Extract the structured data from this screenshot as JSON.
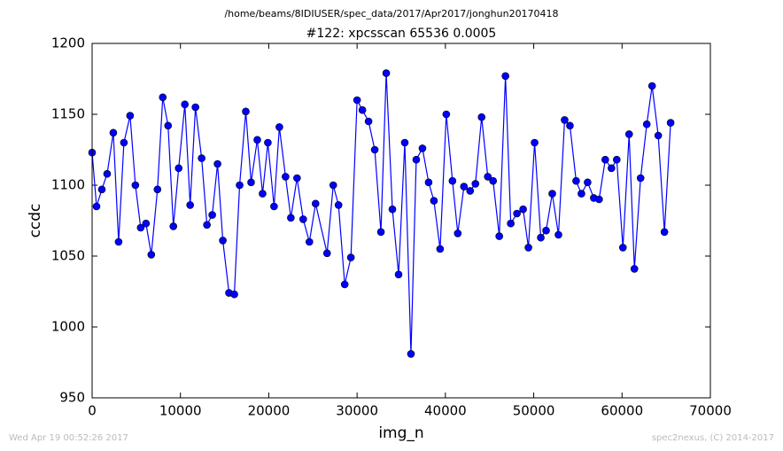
{
  "chart_data": {
    "type": "line",
    "suptitle": "/home/beams/8IDIUSER/spec_data/2017/Apr2017/jonghun20170418",
    "title": "#122: xpcsscan 65536 0.0005",
    "xlabel": "img_n",
    "ylabel": "ccdc",
    "footer_left": "Wed Apr 19 00:52:26 2017",
    "footer_right": "spec2nexus, (C) 2014-2017",
    "x": [
      0,
      500,
      1100,
      1700,
      2400,
      3000,
      3600,
      4300,
      4900,
      5500,
      6100,
      6700,
      7400,
      8000,
      8600,
      9200,
      9800,
      10500,
      11100,
      11700,
      12400,
      13000,
      13600,
      14200,
      14800,
      15500,
      16100,
      16700,
      17400,
      18000,
      18700,
      19300,
      19900,
      20600,
      21200,
      21900,
      22500,
      23200,
      23900,
      24600,
      25300,
      26600,
      27300,
      27900,
      28600,
      29300,
      30000,
      30600,
      31300,
      32000,
      32700,
      33300,
      34000,
      34700,
      35400,
      36100,
      36700,
      37400,
      38100,
      38700,
      39400,
      40100,
      40800,
      41400,
      42100,
      42800,
      43400,
      44100,
      44800,
      45400,
      46100,
      46800,
      47400,
      48100,
      48800,
      49400,
      50100,
      50800,
      51400,
      52100,
      52800,
      53500,
      54100,
      54800,
      55400,
      56100,
      56800,
      57400,
      58100,
      58800,
      59400,
      60100,
      60800,
      61400,
      62100,
      62800,
      63400,
      64100,
      64800,
      65500
    ],
    "series": [
      {
        "name": "ccdc",
        "color": "#0000ff",
        "values": [
          1123,
          1085,
          1097,
          1108,
          1137,
          1060,
          1130,
          1149,
          1100,
          1070,
          1073,
          1051,
          1097,
          1162,
          1142,
          1071,
          1112,
          1157,
          1086,
          1155,
          1119,
          1072,
          1079,
          1115,
          1061,
          1024,
          1023,
          1100,
          1152,
          1102,
          1132,
          1094,
          1130,
          1085,
          1141,
          1106,
          1077,
          1105,
          1076,
          1060,
          1087,
          1052,
          1100,
          1086,
          1030,
          1049,
          1160,
          1153,
          1145,
          1125,
          1067,
          1179,
          1083,
          1037,
          1130,
          981,
          1118,
          1126,
          1102,
          1089,
          1055,
          1150,
          1103,
          1066,
          1099,
          1096,
          1101,
          1148,
          1106,
          1103,
          1064,
          1177,
          1073,
          1080,
          1083,
          1056,
          1130,
          1063,
          1068,
          1094,
          1065,
          1146,
          1142,
          1103,
          1094,
          1102,
          1091,
          1090,
          1118,
          1112,
          1118,
          1056,
          1136,
          1041,
          1105,
          1143,
          1170,
          1135,
          1067,
          1144
        ]
      }
    ],
    "xlim": [
      0,
      70000
    ],
    "xticks": [
      0,
      10000,
      20000,
      30000,
      40000,
      50000,
      60000,
      70000
    ],
    "ylim": [
      950,
      1200
    ],
    "yticks": [
      950,
      1000,
      1050,
      1100,
      1150,
      1200
    ]
  }
}
